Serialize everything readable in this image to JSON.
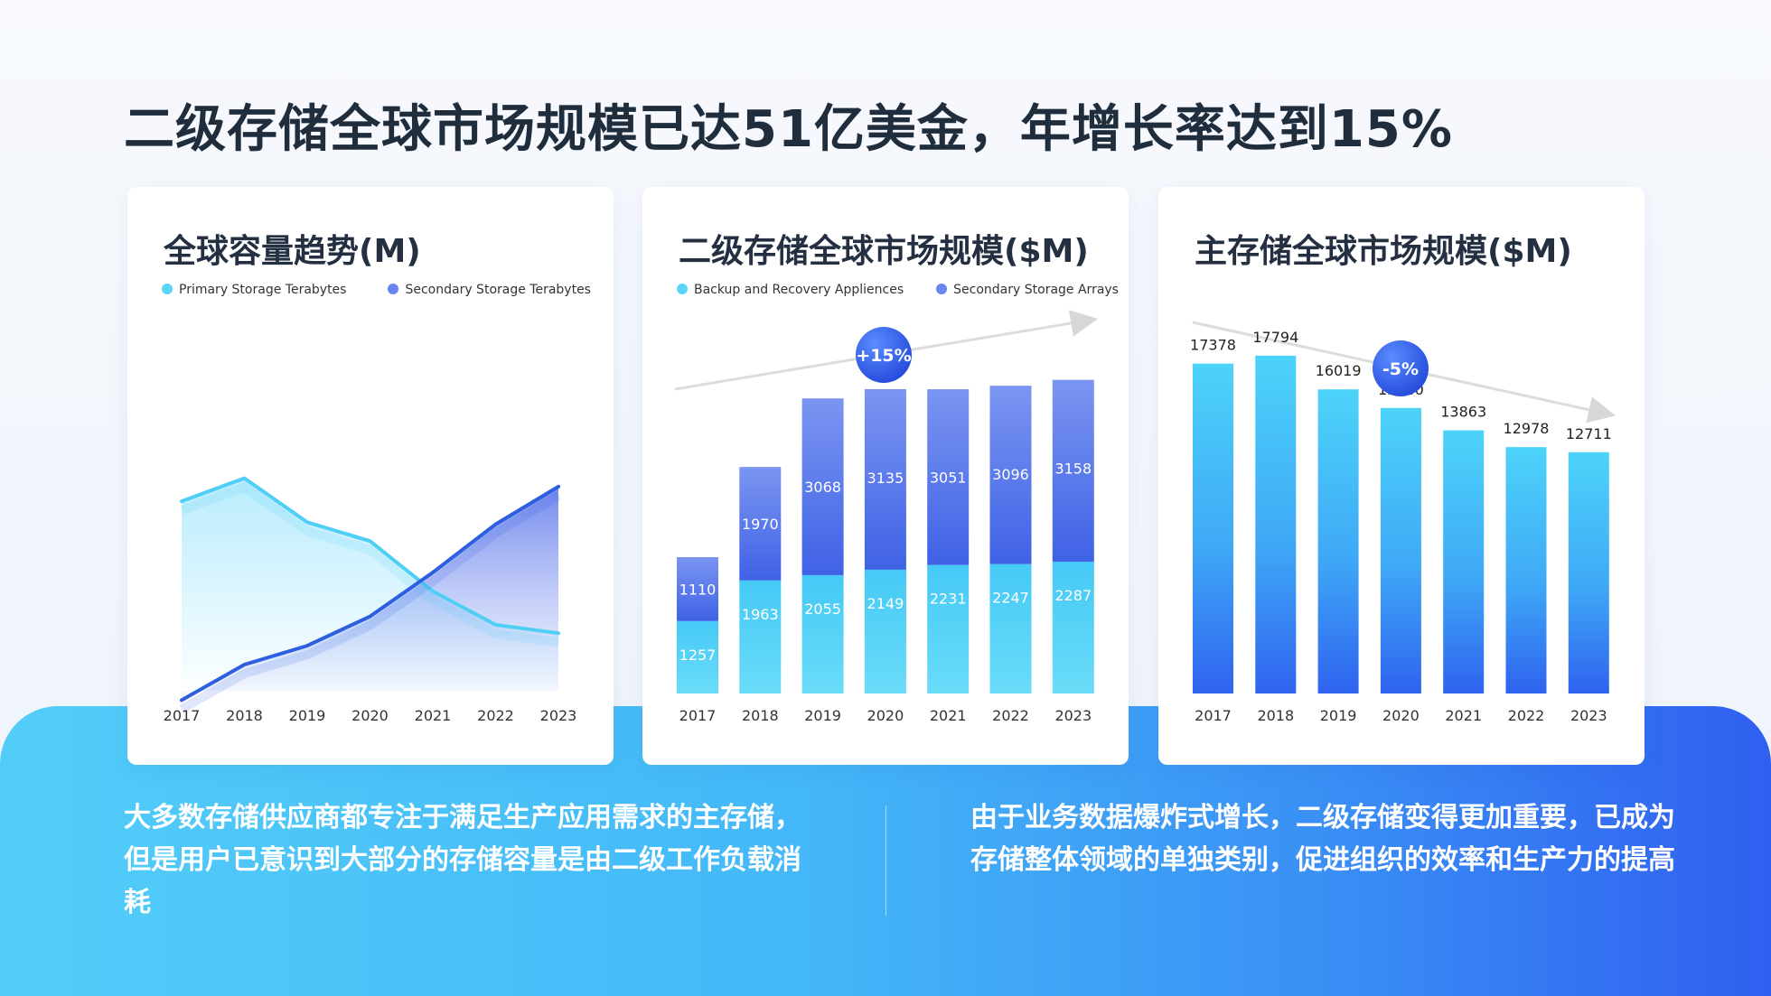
{
  "page": {
    "title": "二级存储全球市场规模已达51亿美金，年增长率达到15%",
    "left_text": "大多数存储供应商都专注于满足生产应用需求的主存储，但是用户已意识到大部分的存储容量是由二级工作负载消耗",
    "right_text": "由于业务数据爆炸式增长，二级存储变得更加重要，已成为存储整体领域的单独类别，促进组织的效率和生产力的提高"
  },
  "colors": {
    "light_blue": "#49d0f8",
    "blue": "#2d5fe0",
    "mid_blue": "#5f86f2",
    "band_start": "#52cdf8",
    "band_end": "#2f5ff0"
  },
  "chart_data": [
    {
      "type": "area",
      "title": "全球容量趋势(M)",
      "x": [
        "2017",
        "2018",
        "2019",
        "2020",
        "2021",
        "2022",
        "2023"
      ],
      "series": [
        {
          "name": "Primary Storage Terabytes",
          "values": [
            820,
            930,
            720,
            630,
            390,
            230,
            190
          ]
        },
        {
          "name": "Secondary Storage Terabytes",
          "values": [
            -130,
            40,
            130,
            270,
            480,
            710,
            890
          ]
        }
      ],
      "ylim": [
        -180,
        1200
      ],
      "legend": "top-left",
      "grid": false
    },
    {
      "type": "bar",
      "stacked": true,
      "title": "二级存储全球市场规模($M)",
      "categories": [
        "2017",
        "2018",
        "2019",
        "2020",
        "2021",
        "2022",
        "2023"
      ],
      "series": [
        {
          "name": "Backup and Recovery Appliences",
          "values": [
            1257,
            1963,
            2055,
            2149,
            2231,
            2247,
            2287
          ]
        },
        {
          "name": "Secondary Storage Arrays",
          "values": [
            1110,
            1970,
            3068,
            3135,
            3051,
            3096,
            3158
          ]
        }
      ],
      "trend_label": "+15%",
      "ylim": [
        0,
        6600
      ],
      "legend": "top-left",
      "grid": false
    },
    {
      "type": "bar",
      "title": "主存储全球市场规模($M)",
      "categories": [
        "2017",
        "2018",
        "2019",
        "2020",
        "2021",
        "2022",
        "2023"
      ],
      "values": [
        17378,
        17794,
        16019,
        15040,
        13863,
        12978,
        12711
      ],
      "trend_label": "-5%",
      "ylim": [
        0,
        20500
      ],
      "grid": false
    }
  ]
}
